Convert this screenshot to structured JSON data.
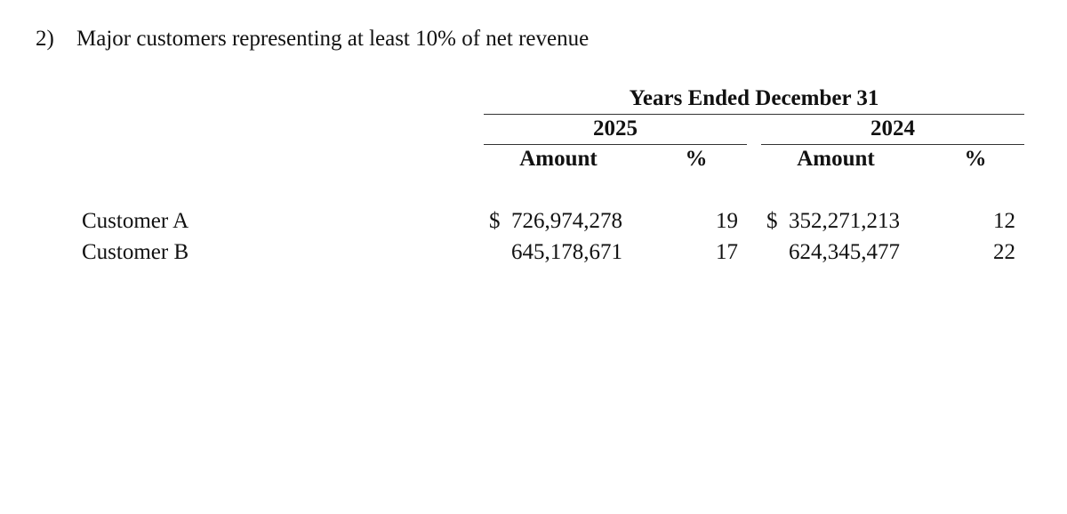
{
  "section": {
    "number": "2)",
    "title": "Major customers representing at least 10% of net revenue"
  },
  "table": {
    "period_header": "Years Ended December 31",
    "years": [
      "2025",
      "2024"
    ],
    "col_amount": "Amount",
    "col_percent": "%",
    "currency_symbol": "$",
    "rows": [
      {
        "label": "Customer A",
        "amount_2025": "726,974,278",
        "pct_2025": "19",
        "amount_2024": "352,271,213",
        "pct_2024": "12"
      },
      {
        "label": "Customer B",
        "amount_2025": "645,178,671",
        "pct_2025": "17",
        "amount_2024": "624,345,477",
        "pct_2024": "22"
      }
    ]
  }
}
